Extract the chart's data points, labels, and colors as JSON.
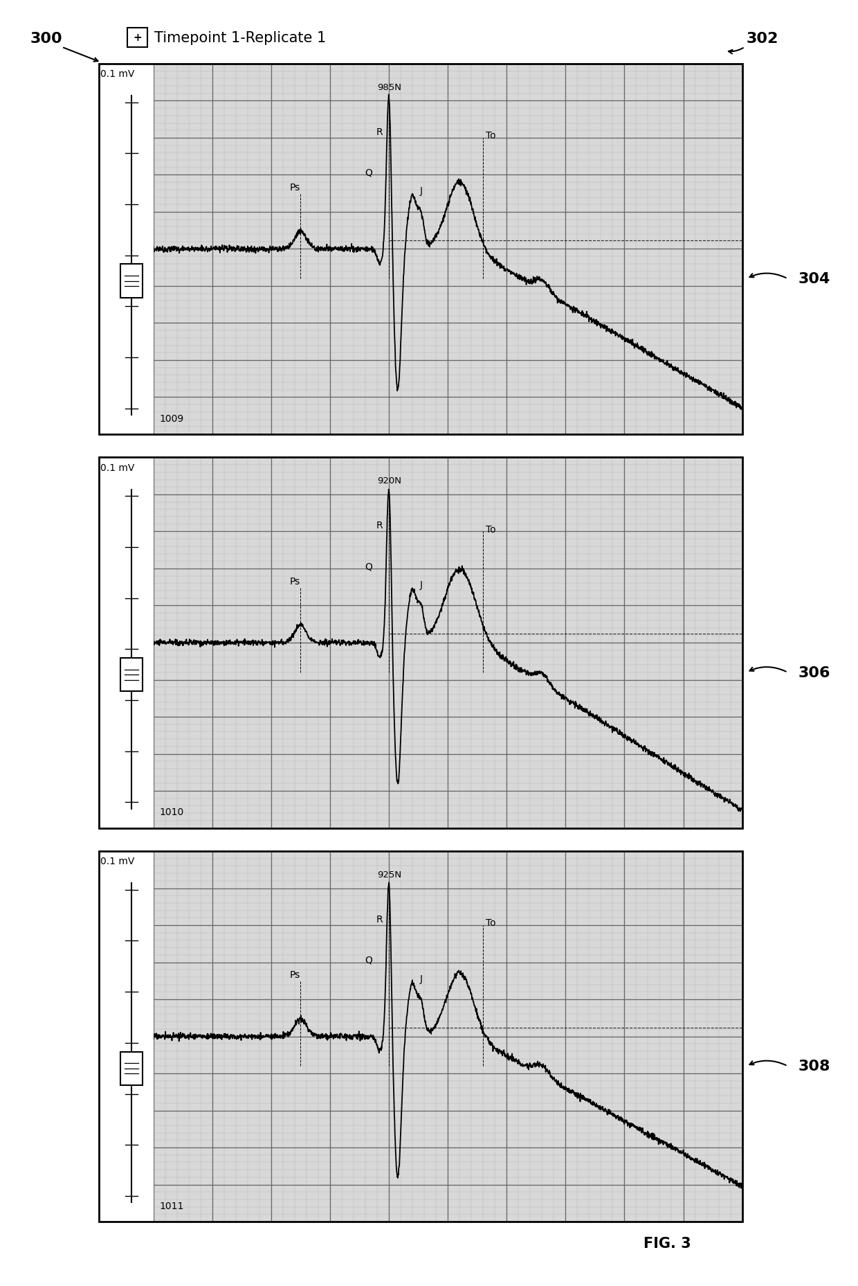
{
  "title": "Timepoint 1-Replicate 1",
  "fig_label_300": "300",
  "fig_label_302": "302",
  "panel_labels": [
    "304",
    "306",
    "308"
  ],
  "panel_ids": [
    "1009",
    "1010",
    "1011"
  ],
  "panel_Ns": [
    "985N",
    "920N",
    "925N"
  ],
  "scale_label": "0.1 mV",
  "bg_color": "#ffffff",
  "grid_major_color": "#666666",
  "grid_minor_color": "#bbbbbb",
  "panel_bg_color": "#d8d8d8",
  "left_white_bg": "#ffffff",
  "fig_label_fontsize": 16,
  "title_fontsize": 15,
  "annotation_fontsize": 10,
  "panel_id_fontsize": 10,
  "scale_fontsize": 10,
  "figwidth": 12.4,
  "figheight": 18.58
}
